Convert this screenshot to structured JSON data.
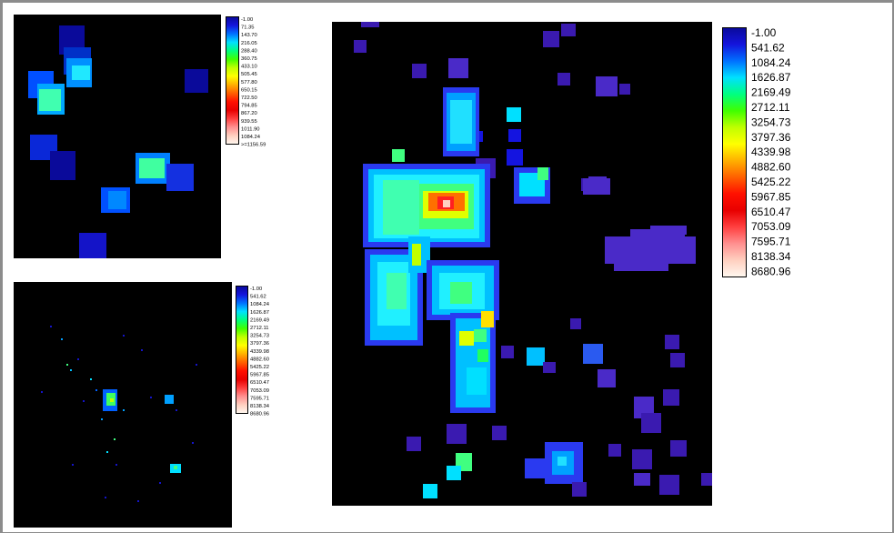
{
  "panels": [
    {
      "id": "top-left",
      "legend_labels": [
        "-1.00",
        "71.35",
        "143.70",
        "216.05",
        "288.40",
        "360.75",
        "433.10",
        "505.45",
        "577.80",
        "650.15",
        "722.50",
        "794.85",
        "867.20",
        "939.55",
        "1011.90",
        "1084.24",
        ">=1156.59"
      ]
    },
    {
      "id": "bottom-left",
      "legend_labels": [
        "-1.00",
        "541.62",
        "1084.24",
        "1626.87",
        "2169.49",
        "2712.11",
        "3254.73",
        "3797.36",
        "4339.98",
        "4882.60",
        "5425.22",
        "5967.85",
        "6510.47",
        "7053.09",
        "7595.71",
        "8138.34",
        "8680.96"
      ]
    },
    {
      "id": "right",
      "legend_labels": [
        "-1.00",
        "541.62",
        "1084.24",
        "1626.87",
        "2169.49",
        "2712.11",
        "3254.73",
        "3797.36",
        "4339.98",
        "4882.60",
        "5425.22",
        "5967.85",
        "6510.47",
        "7053.09",
        "7595.71",
        "8138.34",
        "8680.96"
      ]
    }
  ],
  "colormap": [
    "#0a0a9a",
    "#1414dc",
    "#0070ff",
    "#00e0ff",
    "#00ff80",
    "#40ff00",
    "#c0ff00",
    "#ffff00",
    "#ffb000",
    "#ff6000",
    "#ff1000",
    "#e80000",
    "#ff4040",
    "#ff9090",
    "#ffd0c0",
    "#fff8f0"
  ]
}
